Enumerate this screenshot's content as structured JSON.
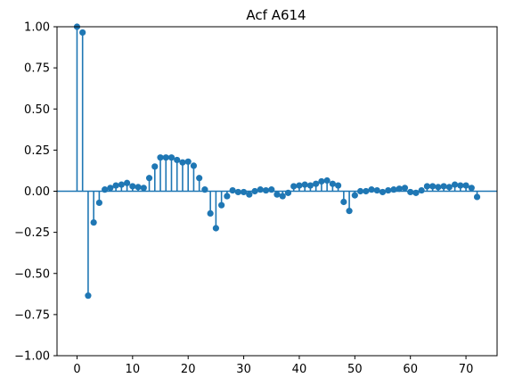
{
  "chart_data": {
    "type": "stem",
    "title": "Acf A614",
    "xlabel": "",
    "ylabel": "",
    "xlim": [
      -3.6,
      75.6
    ],
    "ylim": [
      -1.0,
      1.0
    ],
    "xticks": [
      0,
      10,
      20,
      30,
      40,
      50,
      60,
      70
    ],
    "xtick_labels": [
      "0",
      "10",
      "20",
      "30",
      "40",
      "50",
      "60",
      "70"
    ],
    "yticks": [
      1.0,
      0.75,
      0.5,
      0.25,
      0.0,
      -0.25,
      -0.5,
      -0.75,
      -1.0
    ],
    "ytick_labels": [
      "1.00",
      "0.75",
      "0.50",
      "0.25",
      "0.00",
      "−0.25",
      "−0.50",
      "−0.75",
      "−1.00"
    ],
    "grid": false,
    "color": "#1f77b4",
    "lags": [
      0,
      1,
      2,
      3,
      4,
      5,
      6,
      7,
      8,
      9,
      10,
      11,
      12,
      13,
      14,
      15,
      16,
      17,
      18,
      19,
      20,
      21,
      22,
      23,
      24,
      25,
      26,
      27,
      28,
      29,
      30,
      31,
      32,
      33,
      34,
      35,
      36,
      37,
      38,
      39,
      40,
      41,
      42,
      43,
      44,
      45,
      46,
      47,
      48,
      49,
      50,
      51,
      52,
      53,
      54,
      55,
      56,
      57,
      58,
      59,
      60,
      61,
      62,
      63,
      64,
      65,
      66,
      67,
      68,
      69,
      70,
      71,
      72
    ],
    "values": [
      1.0,
      0.965,
      -0.635,
      -0.19,
      -0.07,
      0.01,
      0.02,
      0.035,
      0.04,
      0.05,
      0.03,
      0.025,
      0.02,
      0.08,
      0.15,
      0.205,
      0.205,
      0.205,
      0.19,
      0.175,
      0.18,
      0.155,
      0.08,
      0.01,
      -0.135,
      -0.225,
      -0.085,
      -0.03,
      0.005,
      -0.005,
      -0.005,
      -0.02,
      0.0,
      0.01,
      0.005,
      0.01,
      -0.02,
      -0.03,
      -0.01,
      0.03,
      0.035,
      0.04,
      0.035,
      0.045,
      0.06,
      0.065,
      0.045,
      0.035,
      -0.065,
      -0.12,
      -0.025,
      0.0,
      0.0,
      0.01,
      0.005,
      -0.005,
      0.005,
      0.01,
      0.015,
      0.02,
      -0.005,
      -0.01,
      0.005,
      0.03,
      0.03,
      0.025,
      0.03,
      0.025,
      0.04,
      0.035,
      0.035,
      0.02,
      -0.035
    ]
  }
}
